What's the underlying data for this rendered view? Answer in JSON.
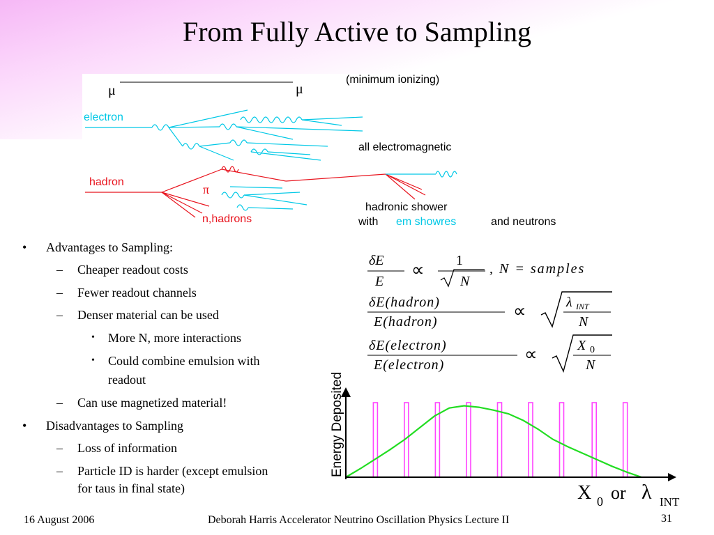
{
  "slide": {
    "title": "From Fully Active to Sampling",
    "page_number": "31"
  },
  "diagram": {
    "mu_left": "μ",
    "mu_right": "μ",
    "minimum_ionizing": "(minimum ionizing)",
    "electron": "electron",
    "all_em": "all electromagnetic",
    "hadron": "hadron",
    "pi": "π",
    "n_hadrons": "n,hadrons",
    "hadronic_shower": "hadronic shower",
    "with": "with",
    "em_showers": "em showres",
    "and_neutrons": "and neutrons",
    "colors": {
      "electron": "#00c8e6",
      "hadron": "#e8141e",
      "em_label": "#00c8e6"
    }
  },
  "bullets": {
    "advantages": "Advantages to Sampling:",
    "adv_items": [
      "Cheaper readout costs",
      "Fewer readout channels",
      "Denser material can be used"
    ],
    "denser_sub": [
      "More N, more interactions",
      "Could combine emulsion with readout"
    ],
    "adv_last": "Can use magnetized material!",
    "disadvantages": "Disadvantages to Sampling",
    "dis_items": [
      "Loss of information",
      "Particle ID is harder (except emulsion for taus in final state)"
    ],
    "bullet_mark": "•",
    "dash_mark": "–",
    "readout_wrap": "readout",
    "pid_line1": "Particle ID is harder (except emulsion",
    "pid_line2": "for taus in final state)",
    "combine_line1": "Could combine emulsion with"
  },
  "equations": {
    "eq1": {
      "num": "δE",
      "den": "E",
      "prop": "∝",
      "frac_num": "1",
      "frac_den": "N",
      "tail": ", N = samples"
    },
    "eq2": {
      "num": "δE(hadron)",
      "den": "E(hadron)",
      "prop": "∝",
      "root_num": "λ",
      "root_num_sub": "INT",
      "root_den": "N"
    },
    "eq3": {
      "num": "δE(electron)",
      "den": "E(electron)",
      "prop": "∝",
      "root_num": "X",
      "root_num_sub": "0",
      "root_den": "N"
    }
  },
  "chart_data": {
    "type": "line",
    "ylabel": "Energy Deposited",
    "xlabel_parts": {
      "x0": "X",
      "x0_sub": "0",
      "or": "or",
      "lambda": "λ",
      "lambda_sub": "INT"
    },
    "series": [
      {
        "color": "#22dd22",
        "x": [
          0,
          1,
          2,
          3,
          4,
          5,
          6,
          7,
          8,
          9,
          10,
          11,
          12,
          13,
          14,
          15,
          16,
          17,
          18,
          19,
          20
        ],
        "values": [
          0,
          0.12,
          0.25,
          0.38,
          0.52,
          0.68,
          0.84,
          0.95,
          0.98,
          0.96,
          0.92,
          0.87,
          0.78,
          0.66,
          0.52,
          0.42,
          0.33,
          0.24,
          0.15,
          0.07,
          0
        ]
      }
    ],
    "sampling_planes": {
      "color": "#ff44ff",
      "positions": [
        2,
        4.1,
        6.2,
        8.3,
        10.4,
        12.5,
        14.6,
        16.8,
        18.9
      ]
    },
    "xlim": [
      0,
      20
    ],
    "ylim": [
      0,
      1.1
    ],
    "grid": false
  },
  "footer": {
    "date": "16 August 2006",
    "presenter": "Deborah Harris  Accelerator Neutrino Oscillation Physics Lecture II"
  }
}
